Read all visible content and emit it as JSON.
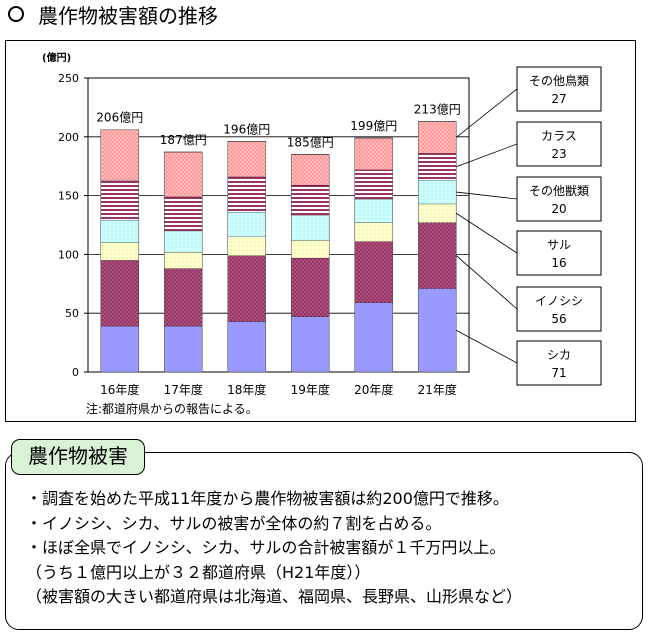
{
  "page": {
    "title": "農作物被害額の推移"
  },
  "chart_data": {
    "type": "bar",
    "stacked": true,
    "title": "農作物被害額の推移",
    "ylabel": "(億円)",
    "xlabel": "",
    "ylim": [
      0,
      250
    ],
    "yticks": [
      0,
      50,
      100,
      150,
      200,
      250
    ],
    "categories": [
      "16年度",
      "17年度",
      "18年度",
      "19年度",
      "20年度",
      "21年度"
    ],
    "totals": [
      206,
      187,
      196,
      185,
      199,
      213
    ],
    "total_labels": [
      "206億円",
      "187億円",
      "196億円",
      "185億円",
      "199億円",
      "213億円"
    ],
    "series": [
      {
        "name": "シカ",
        "color": "#9999ff",
        "values": [
          39,
          39,
          43,
          47,
          59,
          71
        ]
      },
      {
        "name": "イノシシ",
        "color": "#993366",
        "values": [
          56,
          49,
          56,
          50,
          52,
          56
        ]
      },
      {
        "name": "サル",
        "color": "#ffffcc",
        "values": [
          15,
          14,
          16,
          15,
          16,
          16
        ]
      },
      {
        "name": "その他獣類",
        "color": "#ccffff",
        "values": [
          19,
          18,
          21,
          21,
          20,
          20
        ]
      },
      {
        "name": "カラス",
        "color": "#ccccff",
        "values": [
          34,
          29,
          30,
          26,
          25,
          23
        ]
      },
      {
        "name": "その他鳥類",
        "color": "#ff9999",
        "values": [
          43,
          38,
          30,
          26,
          27,
          27
        ]
      }
    ],
    "legend": [
      {
        "name": "その他鳥類",
        "value": "27"
      },
      {
        "name": "カラス",
        "value": "23"
      },
      {
        "name": "その他獣類",
        "value": "20"
      },
      {
        "name": "サル",
        "value": "16"
      },
      {
        "name": "イノシシ",
        "value": "56"
      },
      {
        "name": "シカ",
        "value": "71"
      }
    ],
    "legend_position": "right",
    "grid": true,
    "note": "注:都道府県からの報告による。"
  },
  "summary": {
    "heading": "農作物被害",
    "lines": [
      "・調査を始めた平成11年度から農作物被害額は約200億円で推移。",
      "・イノシシ、シカ、サルの被害が全体の約７割を占める。",
      "・ほぼ全県でイノシシ、シカ、サルの合計被害額が１千万円以上。",
      "（うち１億円以上が３２都道府県（H21年度））",
      "（被害額の大きい都道府県は北海道、福岡県、長野県、山形県など）"
    ]
  }
}
